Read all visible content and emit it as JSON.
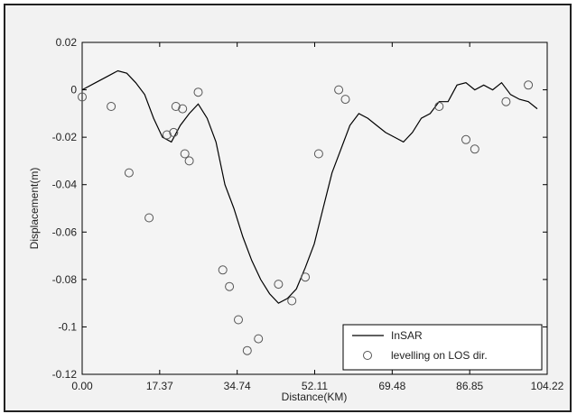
{
  "chart_data": {
    "type": "line",
    "title": "",
    "xlabel": "Distance(KM)",
    "ylabel": "Displacement(m)",
    "xlim": [
      0,
      104.22
    ],
    "ylim": [
      -0.12,
      0.02
    ],
    "x_ticks": [
      "0.00",
      "17.37",
      "34.74",
      "52.11",
      "69.48",
      "86.85",
      "104.22"
    ],
    "y_ticks": [
      "0.02",
      "0",
      "-0.02",
      "-0.04",
      "-0.06",
      "-0.08",
      "-0.1",
      "-0.12"
    ],
    "legend_position": "bottom-right",
    "series": [
      {
        "name": "InSAR",
        "style": "line",
        "color": "#000000",
        "x": [
          0,
          3,
          6,
          8,
          10,
          12,
          14,
          16,
          18,
          20,
          22,
          24,
          26,
          28,
          30,
          32,
          34,
          36,
          38,
          40,
          42,
          44,
          46,
          48,
          50,
          52,
          54,
          56,
          58,
          60,
          62,
          64,
          66,
          68,
          70,
          72,
          74,
          76,
          78,
          80,
          82,
          84,
          86,
          88,
          90,
          92,
          94,
          96,
          98,
          100,
          102
        ],
        "y": [
          0.0,
          0.003,
          0.006,
          0.008,
          0.007,
          0.003,
          -0.002,
          -0.012,
          -0.02,
          -0.022,
          -0.015,
          -0.01,
          -0.006,
          -0.012,
          -0.022,
          -0.04,
          -0.05,
          -0.062,
          -0.072,
          -0.08,
          -0.086,
          -0.09,
          -0.088,
          -0.084,
          -0.075,
          -0.065,
          -0.05,
          -0.035,
          -0.025,
          -0.015,
          -0.01,
          -0.012,
          -0.015,
          -0.018,
          -0.02,
          -0.022,
          -0.018,
          -0.012,
          -0.01,
          -0.005,
          -0.005,
          0.002,
          0.003,
          0.0,
          0.002,
          0.0,
          0.003,
          -0.002,
          -0.004,
          -0.005,
          -0.008
        ]
      },
      {
        "name": "levelling on LOS dir.",
        "style": "marker",
        "color": "#555555",
        "x": [
          0.0,
          6.5,
          10.5,
          15.0,
          19.0,
          20.5,
          21.0,
          22.5,
          23.0,
          24.0,
          26.0,
          31.5,
          33.0,
          35.0,
          37.0,
          39.5,
          44.0,
          47.0,
          50.0,
          53.0,
          57.5,
          59.0,
          80.0,
          86.0,
          88.0,
          95.0,
          100.0
        ],
        "y": [
          -0.003,
          -0.007,
          -0.035,
          -0.054,
          -0.019,
          -0.018,
          -0.007,
          -0.008,
          -0.027,
          -0.03,
          -0.001,
          -0.076,
          -0.083,
          -0.097,
          -0.11,
          -0.105,
          -0.082,
          -0.089,
          -0.079,
          -0.027,
          0.0,
          -0.004,
          -0.007,
          -0.021,
          -0.025,
          -0.005,
          0.002
        ]
      }
    ]
  }
}
